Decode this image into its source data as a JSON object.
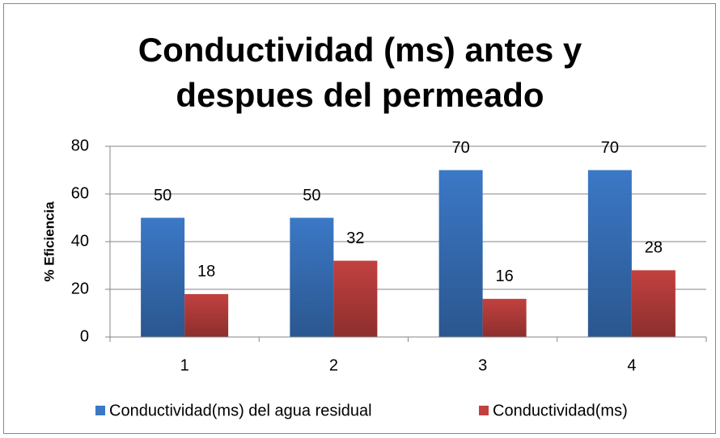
{
  "chart_data": {
    "type": "bar",
    "title": "Conductividad (ms) antes y despues del permeado",
    "y_label": "% Eficiencia",
    "categories": [
      "1",
      "2",
      "3",
      "4"
    ],
    "series": [
      {
        "name": "Conductividad(ms) del agua residual",
        "color": "#3b78c6",
        "values": [
          50,
          50,
          70,
          70
        ]
      },
      {
        "name": "Conductividad(ms)",
        "color": "#c2413f",
        "values": [
          18,
          32,
          16,
          28
        ]
      }
    ],
    "ylim": [
      0,
      80
    ],
    "yticks": [
      0,
      20,
      40,
      60,
      80
    ],
    "grid": true,
    "legend": "bottom"
  }
}
